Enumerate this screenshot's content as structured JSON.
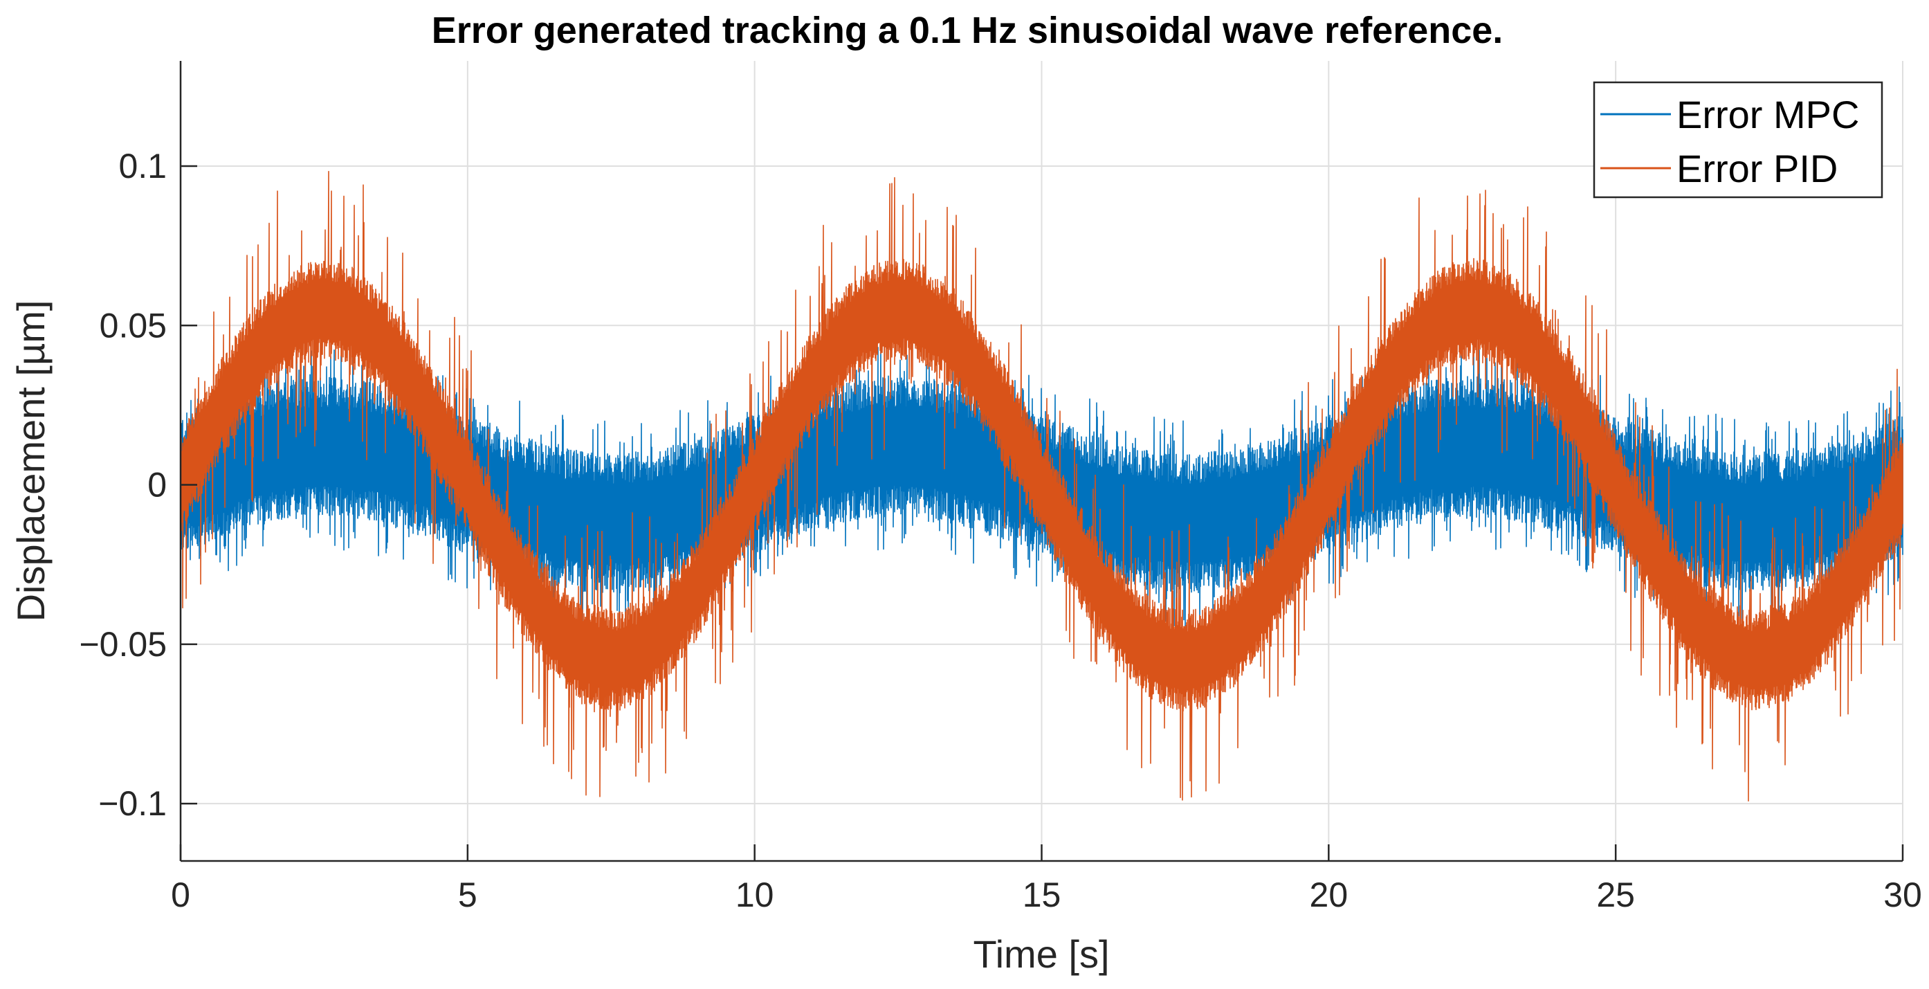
{
  "chart_data": {
    "type": "line",
    "title": "Error generated tracking a 0.1 Hz sinusoidal wave reference.",
    "xlabel": "Time [s]",
    "ylabel": "Displacement [µm]",
    "xlim": [
      0,
      30
    ],
    "ylim": [
      -0.118,
      0.133
    ],
    "grid": true,
    "legend_position": "top-right",
    "x_ticks": [
      0,
      5,
      10,
      15,
      20,
      25,
      30
    ],
    "x_tick_labels": [
      "0",
      "5",
      "10",
      "15",
      "20",
      "25",
      "30"
    ],
    "y_ticks": [
      -0.1,
      -0.05,
      0,
      0.05,
      0.1
    ],
    "y_tick_labels": [
      "−0.1",
      "−0.05",
      "0",
      "0.05",
      "0.1"
    ],
    "series": [
      {
        "name": "Error MPC",
        "color": "#0072BD",
        "signal": {
          "frequency_hz": 0.1,
          "amplitude": 0.012,
          "noise_half_band": 0.022,
          "spike_max": 0.033
        }
      },
      {
        "name": "Error PID",
        "color": "#D95319",
        "signal": {
          "frequency_hz": 0.1,
          "amplitude": 0.055,
          "noise_half_band": 0.016,
          "spike_max": 0.045
        }
      }
    ]
  }
}
